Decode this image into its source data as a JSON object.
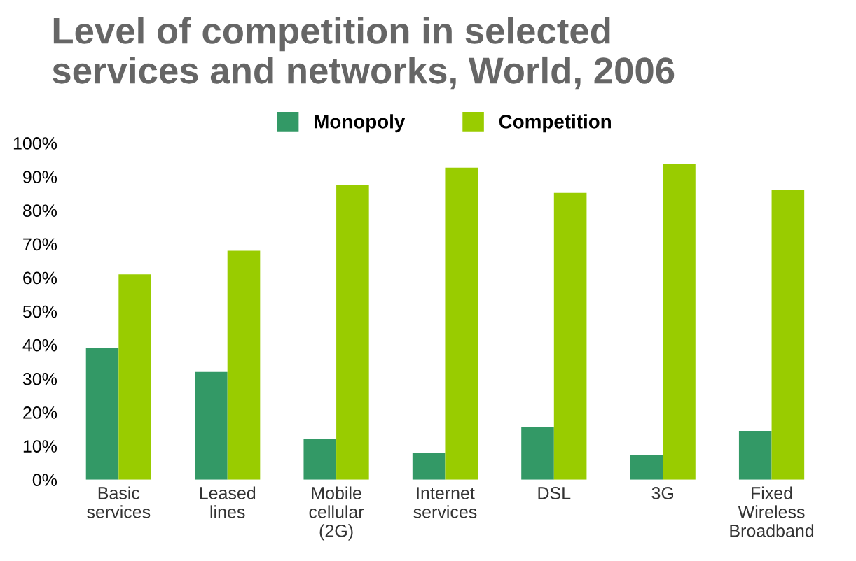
{
  "chart_data": {
    "type": "bar",
    "title": "Level of competition in selected\nservices and networks, World, 2006",
    "categories": [
      "Basic\nservices",
      "Leased\nlines",
      "Mobile\ncellular\n(2G)",
      "Internet\nservices",
      "DSL",
      "3G",
      "Fixed\nWireless\nBroadband"
    ],
    "series": [
      {
        "name": "Monopoly",
        "color": "#339966",
        "values": [
          39,
          32,
          12,
          8,
          15.7,
          7.3,
          14.5
        ]
      },
      {
        "name": "Competition",
        "color": "#99cc00",
        "values": [
          61,
          68,
          87.5,
          92.7,
          85.2,
          93.7,
          86.2
        ]
      }
    ],
    "ylim": [
      0,
      100
    ],
    "yticks": [
      {
        "value": 0,
        "label": "0%"
      },
      {
        "value": 10,
        "label": "10%"
      },
      {
        "value": 20,
        "label": "20%"
      },
      {
        "value": 30,
        "label": "30%"
      },
      {
        "value": 40,
        "label": "40%"
      },
      {
        "value": 50,
        "label": "50%"
      },
      {
        "value": 60,
        "label": "60%"
      },
      {
        "value": 70,
        "label": "70%"
      },
      {
        "value": 80,
        "label": "80%"
      },
      {
        "value": 90,
        "label": "90%"
      },
      {
        "value": 100,
        "label": "100%"
      }
    ],
    "grid": false,
    "legend": "top"
  }
}
